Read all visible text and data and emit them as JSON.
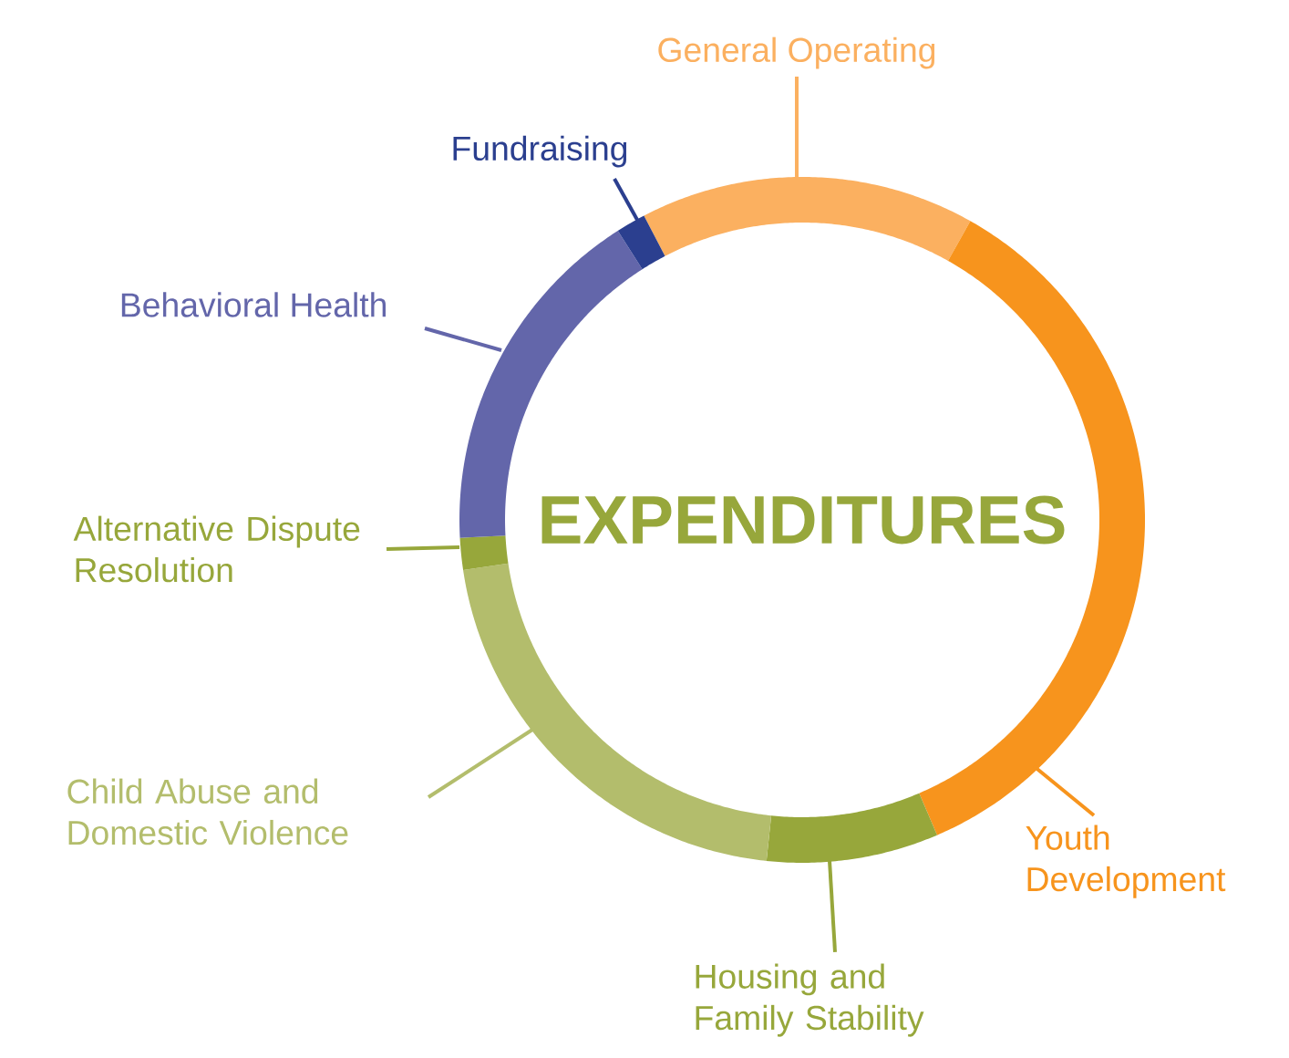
{
  "chart_data": {
    "type": "donut",
    "title": "EXPENDITURES",
    "categories": [
      "General Operating",
      "Youth Development",
      "Housing and Family Stability",
      "Child Abuse and Domestic Violence",
      "Alternative Dispute Resolution",
      "Behavioral Health",
      "Fundraising"
    ],
    "values": [
      15.8,
      35.4,
      8.1,
      21,
      1.5,
      16.8,
      1.4
    ],
    "colors": [
      "#fbb060",
      "#f7941d",
      "#97a73b",
      "#b3bd6c",
      "#97a73b",
      "#6366aa",
      "#2b3f8f"
    ]
  }
}
